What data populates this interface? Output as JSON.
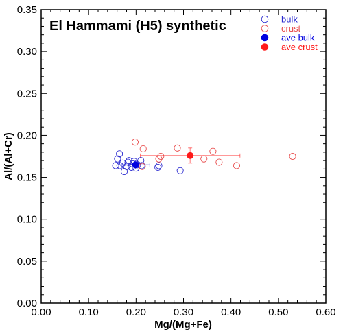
{
  "chart_data": {
    "type": "scatter",
    "title": "El Hammami (H5) synthetic",
    "xlabel": "Mg/(Mg+Fe)",
    "ylabel": "Al/(Al+Cr)",
    "xlim": [
      0.0,
      0.6
    ],
    "ylim": [
      0.0,
      0.35
    ],
    "x_ticks": [
      "0.00",
      "0.10",
      "0.20",
      "0.30",
      "0.40",
      "0.50",
      "0.60"
    ],
    "y_ticks": [
      "0.00",
      "0.05",
      "0.10",
      "0.15",
      "0.20",
      "0.25",
      "0.30",
      "0.35"
    ],
    "x_tick_values": [
      0.0,
      0.1,
      0.2,
      0.3,
      0.4,
      0.5,
      0.6
    ],
    "y_tick_values": [
      0.0,
      0.05,
      0.1,
      0.15,
      0.2,
      0.25,
      0.3,
      0.35
    ],
    "grid": false,
    "legend_position": "top-right",
    "series": [
      {
        "name": "bulk",
        "marker": "open-circle",
        "color": "#2b2bd0",
        "points": [
          [
            0.157,
            0.164
          ],
          [
            0.161,
            0.172
          ],
          [
            0.165,
            0.178
          ],
          [
            0.166,
            0.164
          ],
          [
            0.172,
            0.167
          ],
          [
            0.175,
            0.157
          ],
          [
            0.18,
            0.163
          ],
          [
            0.183,
            0.168
          ],
          [
            0.185,
            0.17
          ],
          [
            0.19,
            0.162
          ],
          [
            0.193,
            0.166
          ],
          [
            0.196,
            0.169
          ],
          [
            0.2,
            0.161
          ],
          [
            0.203,
            0.165
          ],
          [
            0.21,
            0.17
          ],
          [
            0.212,
            0.164
          ],
          [
            0.246,
            0.162
          ],
          [
            0.248,
            0.164
          ],
          [
            0.293,
            0.158
          ]
        ]
      },
      {
        "name": "crust",
        "marker": "open-circle",
        "color": "#e84a4a",
        "points": [
          [
            0.198,
            0.192
          ],
          [
            0.215,
            0.184
          ],
          [
            0.213,
            0.163
          ],
          [
            0.248,
            0.172
          ],
          [
            0.252,
            0.175
          ],
          [
            0.287,
            0.185
          ],
          [
            0.343,
            0.172
          ],
          [
            0.362,
            0.181
          ],
          [
            0.375,
            0.168
          ],
          [
            0.412,
            0.164
          ],
          [
            0.53,
            0.175
          ]
        ]
      },
      {
        "name": "ave bulk",
        "marker": "filled-circle",
        "color": "#0000e0",
        "points": [
          [
            0.199,
            0.165
          ]
        ],
        "x_err": [
          0.03
        ],
        "y_err": [
          0.005
        ]
      },
      {
        "name": "ave crust",
        "marker": "filled-circle",
        "color": "#ff1a1a",
        "points": [
          [
            0.314,
            0.176
          ]
        ],
        "x_err": [
          0.105
        ],
        "y_err": [
          0.009
        ]
      }
    ]
  }
}
